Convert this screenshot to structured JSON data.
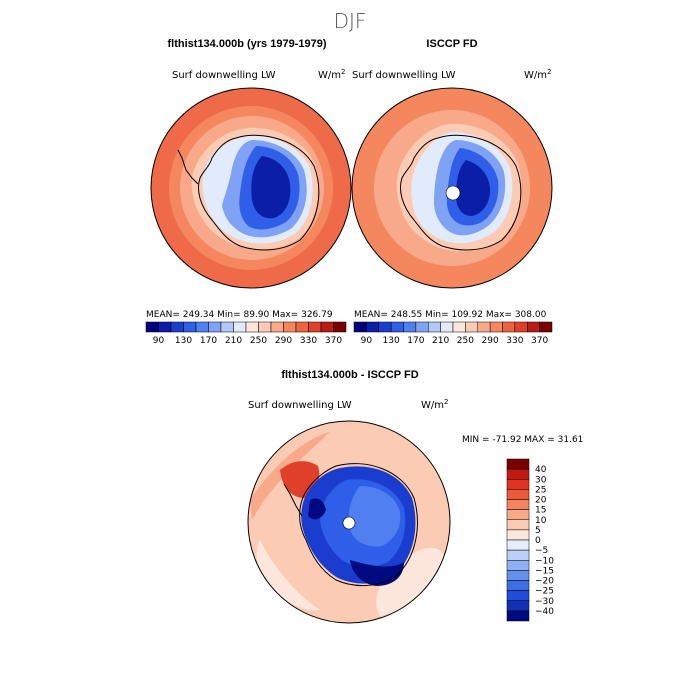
{
  "title": "DJF",
  "panels": [
    {
      "heading": "flthist134.000b (yrs 1979-1979)",
      "variable": "Surf downwelling LW",
      "units": "W/m",
      "units_exp": "2",
      "stats": "MEAN= 249.34  Min=  89.90  Max= 326.79"
    },
    {
      "heading": "ISCCP FD",
      "variable": "Surf downwelling LW",
      "units": "W/m",
      "units_exp": "2",
      "stats": "MEAN= 248.55  Min= 109.92  Max= 308.00"
    },
    {
      "heading": "flthist134.000b - ISCCP FD",
      "variable": "Surf downwelling LW",
      "units": "W/m",
      "units_exp": "2",
      "stats": "MIN = -71.92 MAX =  31.61"
    }
  ],
  "colorbar_abs": {
    "labels": [
      "90",
      "130",
      "170",
      "210",
      "250",
      "290",
      "330",
      "370"
    ],
    "colors": [
      "#00007a",
      "#0a1ea8",
      "#1a3dd0",
      "#2f5ee8",
      "#4f7ff0",
      "#7fa2f4",
      "#b2c8f8",
      "#e1ebfc",
      "#fde7dc",
      "#fbcbb4",
      "#f8a98a",
      "#f5875f",
      "#ee6240",
      "#e0402a",
      "#b81c14",
      "#7a0000"
    ]
  },
  "colorbar_diff": {
    "labels": [
      "40",
      "30",
      "25",
      "20",
      "15",
      "10",
      "5",
      "0",
      "−5",
      "−10",
      "−15",
      "−20",
      "−25",
      "−30",
      "−40"
    ],
    "colors": [
      "#7a0000",
      "#c01a10",
      "#e0321e",
      "#ee5a38",
      "#f5845e",
      "#f8a988",
      "#fbcbb4",
      "#fde7dc",
      "#e5eefc",
      "#bcd0f8",
      "#8fb0f4",
      "#6490ee",
      "#3d6ee6",
      "#1f4cd8",
      "#1030b8",
      "#000a80"
    ]
  }
}
